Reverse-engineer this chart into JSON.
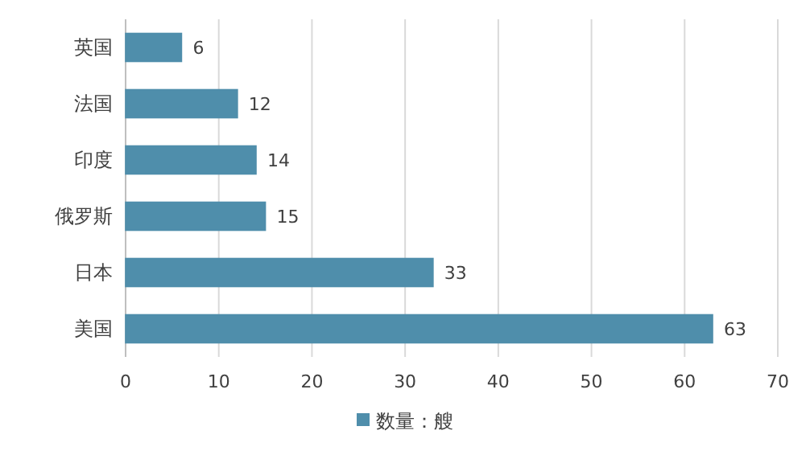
{
  "chart_data": {
    "type": "bar",
    "orientation": "horizontal",
    "categories": [
      "英国",
      "法国",
      "印度",
      "俄罗斯",
      "日本",
      "美国"
    ],
    "series": [
      {
        "name": "数量：艘",
        "color": "#4f8eab",
        "values": [
          6,
          12,
          14,
          15,
          33,
          63
        ]
      }
    ],
    "xlim": [
      0,
      70
    ],
    "xticks": [
      0,
      10,
      20,
      30,
      40,
      50,
      60,
      70
    ],
    "grid": "x",
    "legend": "bottom",
    "data_labels": true
  }
}
